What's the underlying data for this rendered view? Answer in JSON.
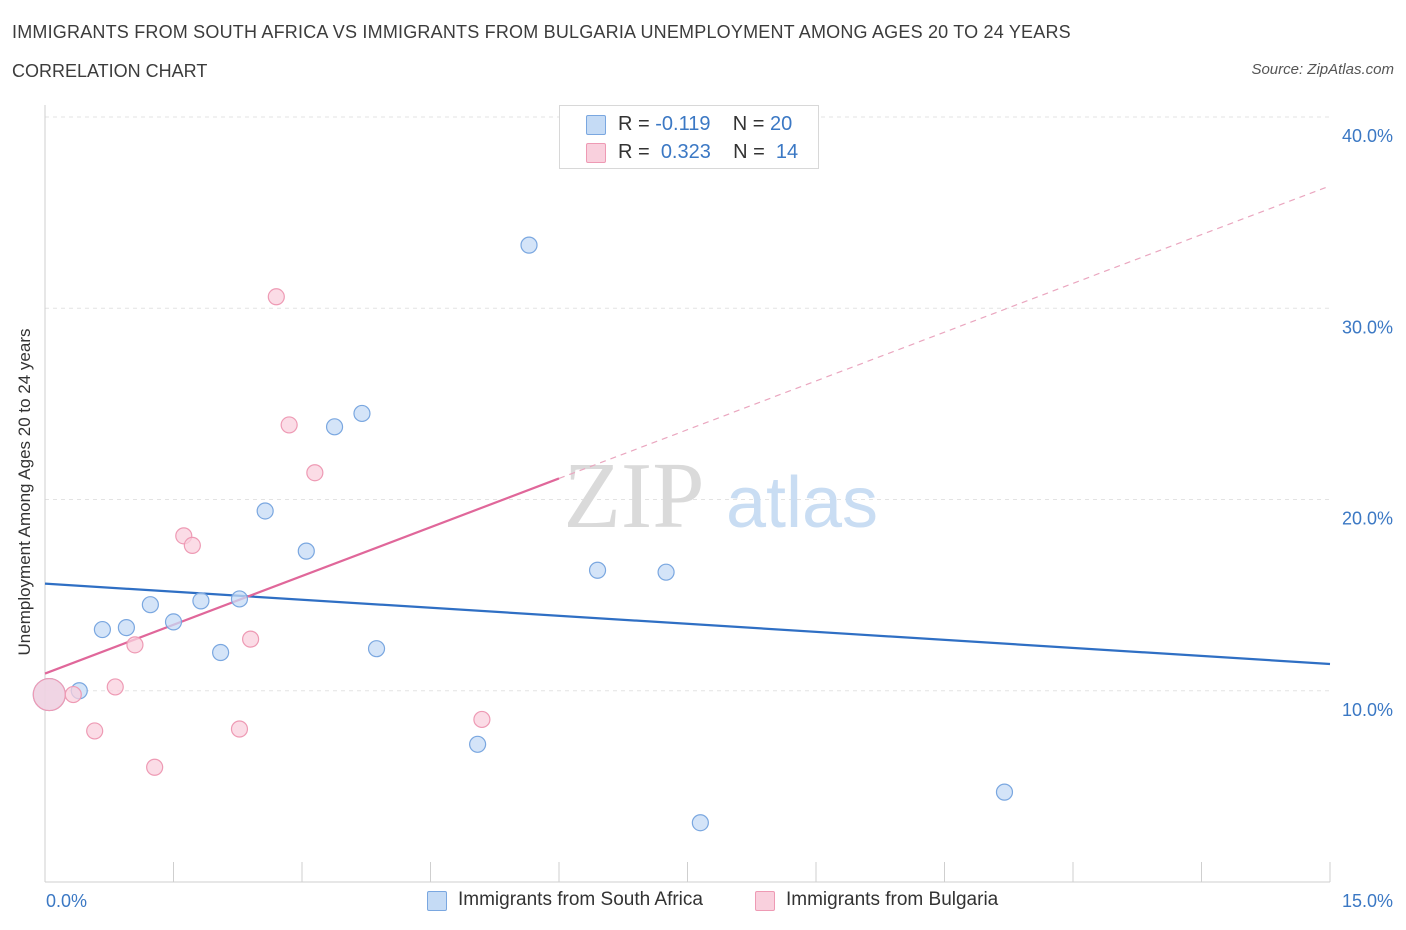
{
  "title": "IMMIGRANTS FROM SOUTH AFRICA VS IMMIGRANTS FROM BULGARIA UNEMPLOYMENT AMONG AGES 20 TO 24 YEARS",
  "subtitle": "CORRELATION CHART",
  "source": "Source: ZipAtlas.com",
  "watermark": {
    "zip": "ZIP",
    "atlas": "atlas"
  },
  "legend": {
    "series1": {
      "r_label": "R = ",
      "r_value": "-0.119",
      "n_label": "N = ",
      "n_value": "20"
    },
    "series2": {
      "r_label": "R = ",
      "r_value": "0.323",
      "n_label": "N = ",
      "n_value": "14"
    }
  },
  "colors": {
    "south_africa_fill": "#c5dbf5",
    "south_africa_stroke": "#7aa7e0",
    "south_africa_line": "#2f6fc4",
    "bulgaria_fill": "#f9d0dd",
    "bulgaria_stroke": "#ee9ab4",
    "bulgaria_line": "#e0679a",
    "axis_label": "#3b78c4",
    "grid": "#e3e3e3"
  },
  "chart_data": {
    "type": "scatter",
    "title": "IMMIGRANTS FROM SOUTH AFRICA VS IMMIGRANTS FROM BULGARIA UNEMPLOYMENT AMONG AGES 20 TO 24 YEARS",
    "xlabel": "",
    "ylabel": "Unemployment Among Ages 20 to 24 years",
    "xlim": [
      0,
      15
    ],
    "ylim": [
      0,
      40
    ],
    "x_tick_labels": [
      "0.0%",
      "15.0%"
    ],
    "y_ticks": [
      10,
      20,
      30,
      40
    ],
    "y_tick_labels": [
      "10.0%",
      "20.0%",
      "30.0%",
      "40.0%"
    ],
    "series": [
      {
        "name": "Immigrants from South Africa",
        "points": [
          {
            "x": 0.05,
            "y": 9.8,
            "big": true
          },
          {
            "x": 0.4,
            "y": 10.0
          },
          {
            "x": 0.67,
            "y": 13.2
          },
          {
            "x": 0.95,
            "y": 13.3
          },
          {
            "x": 1.23,
            "y": 14.5
          },
          {
            "x": 1.5,
            "y": 13.6
          },
          {
            "x": 1.82,
            "y": 14.7
          },
          {
            "x": 2.05,
            "y": 12.0
          },
          {
            "x": 2.27,
            "y": 14.8
          },
          {
            "x": 2.57,
            "y": 19.4
          },
          {
            "x": 3.05,
            "y": 17.3
          },
          {
            "x": 3.38,
            "y": 23.8
          },
          {
            "x": 3.7,
            "y": 24.5
          },
          {
            "x": 3.87,
            "y": 12.2
          },
          {
            "x": 5.05,
            "y": 7.2
          },
          {
            "x": 5.65,
            "y": 33.3
          },
          {
            "x": 6.45,
            "y": 16.3
          },
          {
            "x": 7.25,
            "y": 16.2
          },
          {
            "x": 7.65,
            "y": 3.1
          },
          {
            "x": 11.2,
            "y": 4.7
          }
        ],
        "trend": {
          "x": [
            0,
            15
          ],
          "y": [
            15.6,
            11.4
          ]
        }
      },
      {
        "name": "Immigrants from Bulgaria",
        "points": [
          {
            "x": 0.05,
            "y": 9.8,
            "big": true
          },
          {
            "x": 0.33,
            "y": 9.8
          },
          {
            "x": 0.58,
            "y": 7.9
          },
          {
            "x": 0.82,
            "y": 10.2
          },
          {
            "x": 1.05,
            "y": 12.4
          },
          {
            "x": 1.28,
            "y": 6.0
          },
          {
            "x": 1.62,
            "y": 18.1
          },
          {
            "x": 1.72,
            "y": 17.6
          },
          {
            "x": 2.27,
            "y": 8.0
          },
          {
            "x": 2.4,
            "y": 12.7
          },
          {
            "x": 2.7,
            "y": 30.6
          },
          {
            "x": 2.85,
            "y": 23.9
          },
          {
            "x": 3.15,
            "y": 21.4
          },
          {
            "x": 5.1,
            "y": 8.5
          }
        ],
        "trend": {
          "x": [
            0,
            6
          ],
          "y": [
            10.9,
            21.1
          ],
          "dashed_extension": {
            "x": [
              6,
              15
            ],
            "y": [
              21.1,
              36.4
            ]
          }
        }
      }
    ]
  },
  "bottom_legend": {
    "item1": "Immigrants from South Africa",
    "item2": "Immigrants from Bulgaria"
  }
}
